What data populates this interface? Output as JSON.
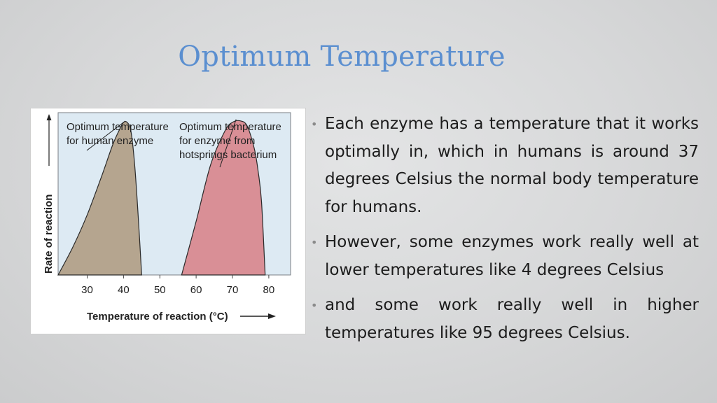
{
  "slide": {
    "title": "Optimum Temperature",
    "bullets": [
      "Each enzyme has a temperature that it works optimally in, which in humans is around 37 degrees Celsius the normal body temperature for humans.",
      "However, some enzymes work really well at lower temperatures like 4 degrees Celsius",
      "and some work really well in higher temperatures like 95 degrees Celsius."
    ]
  },
  "figure": {
    "ylabel": "Rate of reaction",
    "xlabel": "Temperature of reaction (°C)",
    "xticks": [
      "30",
      "40",
      "50",
      "60",
      "70",
      "80"
    ],
    "annotation_human": [
      "Optimum temperature",
      "for human enzyme"
    ],
    "annotation_bacterium": [
      "Optimum temperature",
      "for enzyme from",
      "hotsprings bacterium"
    ]
  },
  "chart_data": {
    "type": "area",
    "xlim": [
      22,
      86
    ],
    "ylim": [
      0,
      1
    ],
    "series": [
      {
        "name": "human enzyme",
        "color": "#b5a58f",
        "x": [
          22,
          26,
          30,
          34,
          37,
          39,
          40,
          41,
          42,
          43,
          44,
          45
        ],
        "y": [
          0,
          0.17,
          0.37,
          0.61,
          0.8,
          0.9,
          0.94,
          0.94,
          0.89,
          0.7,
          0.38,
          0
        ]
      },
      {
        "name": "hotsprings bacterium enzyme",
        "color": "#d98f96",
        "x": [
          56,
          60,
          64,
          68,
          70,
          72,
          74,
          76,
          77,
          78,
          79
        ],
        "y": [
          0,
          0.33,
          0.68,
          0.89,
          0.94,
          0.95,
          0.92,
          0.78,
          0.65,
          0.45,
          0
        ]
      }
    ]
  }
}
